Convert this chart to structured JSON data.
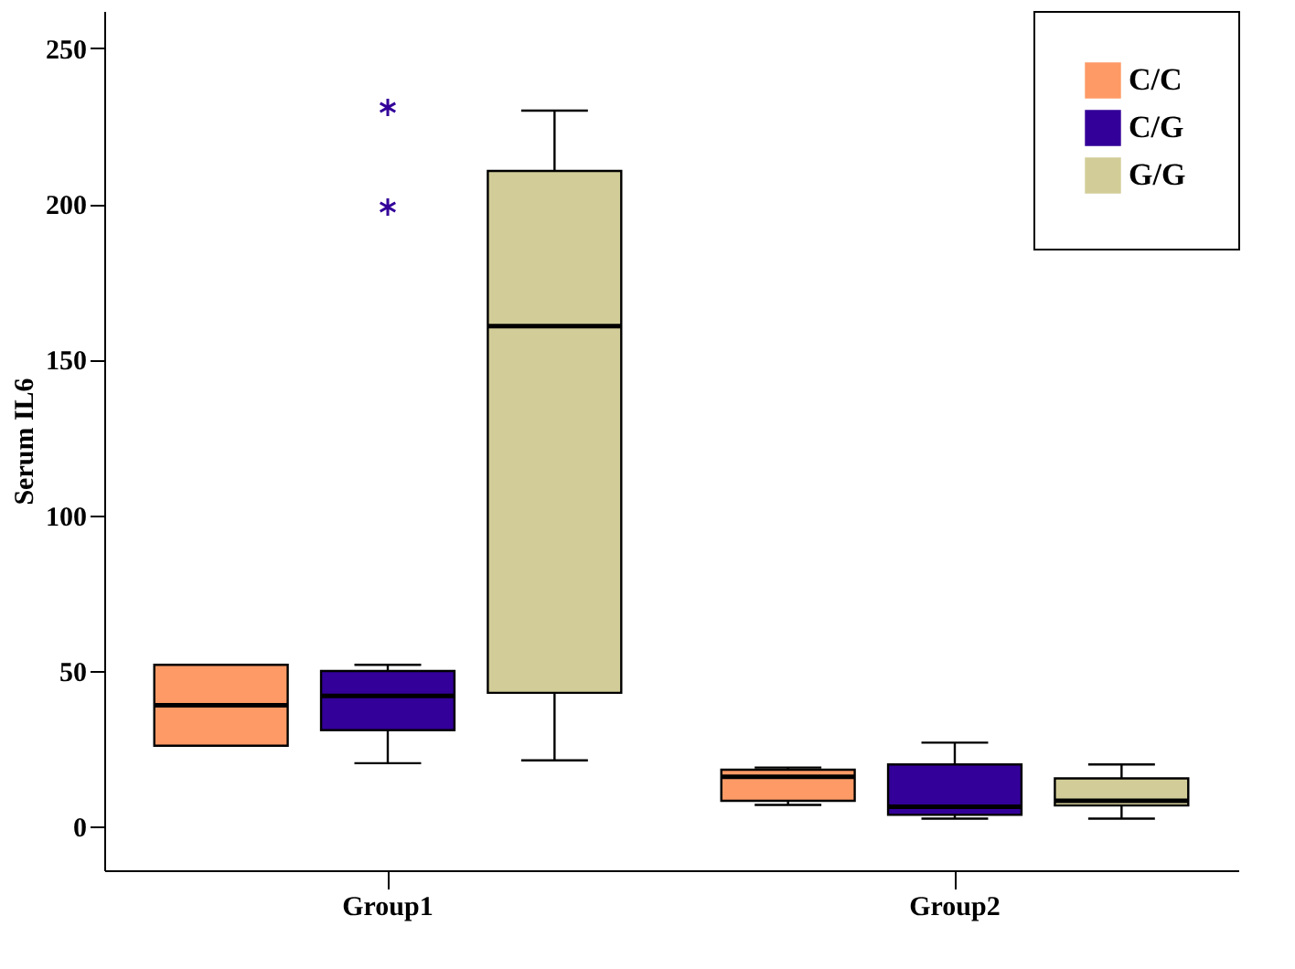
{
  "chart_data": {
    "type": "box",
    "categories": [
      "Group1",
      "Group2"
    ],
    "ylabel": "Serum IL6",
    "ylim": [
      -14,
      262
    ],
    "yticks": [
      0,
      50,
      100,
      150,
      200,
      250
    ],
    "legend": "top right",
    "series": [
      {
        "name": "C/C",
        "color": "#fe9a66",
        "boxes": [
          {
            "low": 26,
            "q1": 26,
            "median": 39,
            "q3": 52,
            "high": 52
          },
          {
            "low": 7,
            "q1": 8.3,
            "median": 16,
            "q3": 18.3,
            "high": 19
          }
        ]
      },
      {
        "name": "C/G",
        "color": "#330099",
        "boxes": [
          {
            "low": 20.4,
            "q1": 31,
            "median": 42,
            "q3": 50,
            "high": 52,
            "outliers": [
              199,
              231
            ]
          },
          {
            "low": 2.6,
            "q1": 3.8,
            "median": 6.4,
            "q3": 20,
            "high": 27
          }
        ]
      },
      {
        "name": "G/G",
        "color": "#d2cd98",
        "boxes": [
          {
            "low": 21.3,
            "q1": 43,
            "median": 160.8,
            "q3": 210.6,
            "high": 230
          },
          {
            "low": 2.6,
            "q1": 6.8,
            "median": 8.3,
            "q3": 15.5,
            "high": 20
          }
        ]
      }
    ]
  }
}
